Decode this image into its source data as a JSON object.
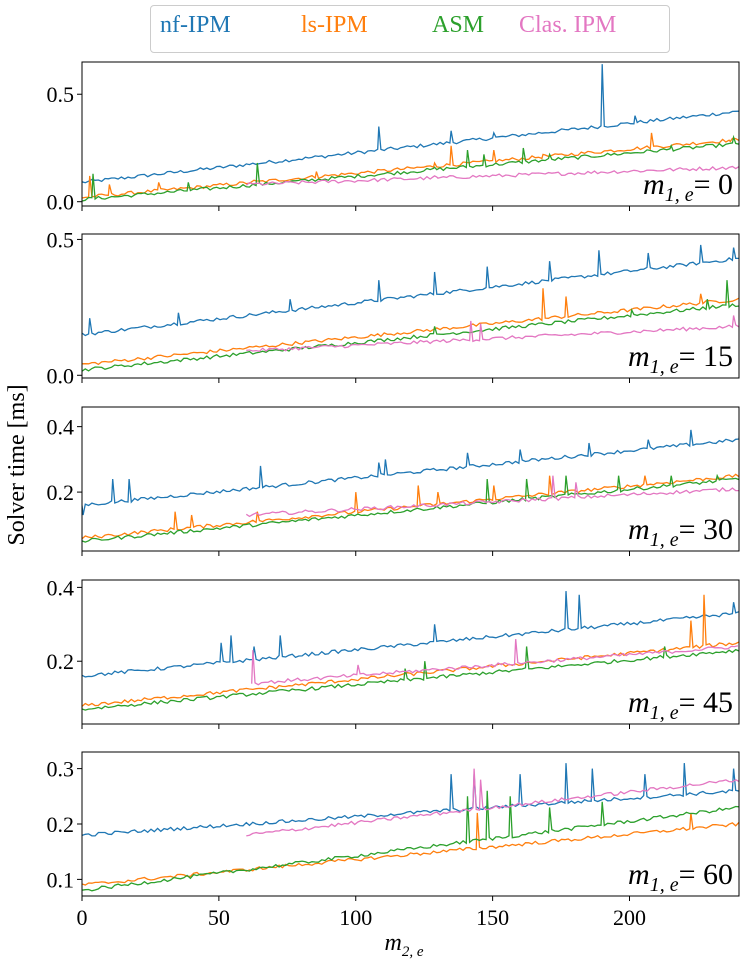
{
  "legend": [
    {
      "label": "nf-IPM",
      "color": "#1f77b4"
    },
    {
      "label": "ls-IPM",
      "color": "#ff7f0e"
    },
    {
      "label": "ASM",
      "color": "#2ca02c"
    },
    {
      "label": "Clas. IPM",
      "color": "#e377c2"
    }
  ],
  "ylabel": "Solver time [ms]",
  "xlabel": "m",
  "xlabel_sub": "2, e",
  "chart_data": [
    {
      "type": "line",
      "annotation": {
        "lhs": "m",
        "sub": "1, e",
        "rhs": "= 0"
      },
      "xlim": [
        0,
        240
      ],
      "ylim": [
        -0.02,
        0.65
      ],
      "yticks": [
        0.0,
        0.5
      ],
      "ytick_labels": [
        "0.0",
        "0.5"
      ],
      "series": [
        {
          "name": "nf-IPM",
          "color": "#1f77b4",
          "x": [
            0,
            240
          ],
          "y": [
            0.09,
            0.42
          ],
          "spikes": [
            [
              108,
              0.35
            ],
            [
              135,
              0.33
            ],
            [
              150,
              0.32
            ],
            [
              190,
              0.64
            ],
            [
              201,
              0.4
            ]
          ]
        },
        {
          "name": "ls-IPM",
          "color": "#ff7f0e",
          "x": [
            0,
            240
          ],
          "y": [
            0.02,
            0.29
          ],
          "spikes": [
            [
              2,
              0.12
            ],
            [
              10,
              0.08
            ],
            [
              28,
              0.09
            ],
            [
              62,
              0.1
            ],
            [
              85,
              0.14
            ],
            [
              128,
              0.18
            ],
            [
              134,
              0.26
            ],
            [
              150,
              0.24
            ],
            [
              168,
              0.22
            ],
            [
              208,
              0.32
            ],
            [
              236,
              0.28
            ]
          ]
        },
        {
          "name": "ASM",
          "color": "#2ca02c",
          "x": [
            0,
            240
          ],
          "y": [
            0.01,
            0.27
          ],
          "spikes": [
            [
              3,
              0.13
            ],
            [
              38,
              0.09
            ],
            [
              64,
              0.18
            ],
            [
              129,
              0.16
            ],
            [
              140,
              0.24
            ],
            [
              146,
              0.22
            ],
            [
              161,
              0.25
            ],
            [
              170,
              0.22
            ],
            [
              215,
              0.26
            ],
            [
              237,
              0.3
            ]
          ]
        },
        {
          "name": "Clas. IPM",
          "color": "#e377c2",
          "x": [
            60,
            240
          ],
          "y": [
            0.08,
            0.16
          ],
          "spikes": [
            [
              128,
              0.12
            ],
            [
              130,
              0.11
            ]
          ]
        }
      ]
    },
    {
      "type": "line",
      "annotation": {
        "lhs": "m",
        "sub": "1, e",
        "rhs": "= 15"
      },
      "xlim": [
        0,
        240
      ],
      "ylim": [
        -0.01,
        0.52
      ],
      "yticks": [
        0.0,
        0.5
      ],
      "ytick_labels": [
        "0.0",
        "0.5"
      ],
      "series": [
        {
          "name": "nf-IPM",
          "color": "#1f77b4",
          "x": [
            0,
            240
          ],
          "y": [
            0.15,
            0.43
          ],
          "spikes": [
            [
              2,
              0.21
            ],
            [
              35,
              0.23
            ],
            [
              76,
              0.28
            ],
            [
              108,
              0.35
            ],
            [
              128,
              0.38
            ],
            [
              148,
              0.4
            ],
            [
              170,
              0.42
            ],
            [
              188,
              0.46
            ],
            [
              206,
              0.45
            ],
            [
              226,
              0.48
            ],
            [
              238,
              0.47
            ]
          ]
        },
        {
          "name": "ls-IPM",
          "color": "#ff7f0e",
          "x": [
            0,
            240
          ],
          "y": [
            0.04,
            0.28
          ],
          "spikes": [
            [
              168,
              0.32
            ],
            [
              176,
              0.29
            ],
            [
              225,
              0.3
            ]
          ]
        },
        {
          "name": "ASM",
          "color": "#2ca02c",
          "x": [
            0,
            240
          ],
          "y": [
            0.02,
            0.26
          ],
          "spikes": [
            [
              128,
              0.18
            ],
            [
              200,
              0.24
            ],
            [
              228,
              0.28
            ],
            [
              235,
              0.35
            ]
          ]
        },
        {
          "name": "Clas. IPM",
          "color": "#e377c2",
          "x": [
            60,
            240
          ],
          "y": [
            0.09,
            0.18
          ],
          "spikes": [
            [
              142,
              0.2
            ],
            [
              145,
              0.19
            ],
            [
              237,
              0.22
            ]
          ]
        }
      ]
    },
    {
      "type": "line",
      "annotation": {
        "lhs": "m",
        "sub": "1, e",
        "rhs": "= 30"
      },
      "xlim": [
        0,
        240
      ],
      "ylim": [
        0.02,
        0.46
      ],
      "yticks": [
        0.2,
        0.4
      ],
      "ytick_labels": [
        "0.2",
        "0.4"
      ],
      "series": [
        {
          "name": "nf-IPM",
          "color": "#1f77b4",
          "x": [
            0,
            240
          ],
          "y": [
            0.16,
            0.36
          ],
          "spikes": [
            [
              0,
              0.13
            ],
            [
              11,
              0.24
            ],
            [
              17,
              0.24
            ],
            [
              65,
              0.28
            ],
            [
              108,
              0.29
            ],
            [
              110,
              0.3
            ],
            [
              140,
              0.32
            ],
            [
              160,
              0.33
            ],
            [
              185,
              0.35
            ],
            [
              206,
              0.36
            ],
            [
              222,
              0.39
            ],
            [
              240,
              0.43
            ]
          ]
        },
        {
          "name": "ls-IPM",
          "color": "#ff7f0e",
          "x": [
            0,
            240
          ],
          "y": [
            0.06,
            0.25
          ],
          "spikes": [
            [
              34,
              0.14
            ],
            [
              40,
              0.13
            ],
            [
              64,
              0.14
            ],
            [
              100,
              0.2
            ],
            [
              123,
              0.22
            ],
            [
              130,
              0.2
            ],
            [
              150,
              0.22
            ],
            [
              170,
              0.25
            ],
            [
              205,
              0.25
            ],
            [
              225,
              0.24
            ]
          ]
        },
        {
          "name": "ASM",
          "color": "#2ca02c",
          "x": [
            0,
            240
          ],
          "y": [
            0.05,
            0.24
          ],
          "spikes": [
            [
              148,
              0.24
            ],
            [
              162,
              0.24
            ],
            [
              176,
              0.25
            ],
            [
              195,
              0.25
            ],
            [
              215,
              0.25
            ],
            [
              232,
              0.25
            ]
          ]
        },
        {
          "name": "Clas. IPM",
          "color": "#e377c2",
          "x": [
            60,
            240
          ],
          "y": [
            0.13,
            0.21
          ],
          "spikes": [
            [
              172,
              0.25
            ],
            [
              180,
              0.23
            ]
          ]
        }
      ]
    },
    {
      "type": "line",
      "annotation": {
        "lhs": "m",
        "sub": "1, e",
        "rhs": "= 45"
      },
      "xlim": [
        0,
        240
      ],
      "ylim": [
        0.03,
        0.42
      ],
      "yticks": [
        0.2,
        0.4
      ],
      "ytick_labels": [
        "0.2",
        "0.4"
      ],
      "series": [
        {
          "name": "nf-IPM",
          "color": "#1f77b4",
          "x": [
            0,
            240
          ],
          "y": [
            0.16,
            0.33
          ],
          "spikes": [
            [
              50,
              0.25
            ],
            [
              54,
              0.27
            ],
            [
              63,
              0.24
            ],
            [
              72,
              0.27
            ],
            [
              128,
              0.3
            ],
            [
              176,
              0.39
            ],
            [
              181,
              0.38
            ],
            [
              238,
              0.36
            ]
          ]
        },
        {
          "name": "ls-IPM",
          "color": "#ff7f0e",
          "x": [
            0,
            240
          ],
          "y": [
            0.08,
            0.25
          ],
          "spikes": [
            [
              222,
              0.31
            ],
            [
              227,
              0.38
            ]
          ]
        },
        {
          "name": "ASM",
          "color": "#2ca02c",
          "x": [
            0,
            240
          ],
          "y": [
            0.07,
            0.23
          ],
          "spikes": [
            [
              118,
              0.18
            ],
            [
              125,
              0.2
            ],
            [
              162,
              0.24
            ],
            [
              212,
              0.24
            ]
          ]
        },
        {
          "name": "Clas. IPM",
          "color": "#e377c2",
          "x": [
            62,
            240
          ],
          "y": [
            0.14,
            0.24
          ],
          "spikes": [
            [
              62,
              0.23
            ],
            [
              100,
              0.19
            ],
            [
              158,
              0.26
            ]
          ]
        }
      ]
    },
    {
      "type": "line",
      "annotation": {
        "lhs": "m",
        "sub": "1, e",
        "rhs": "= 60"
      },
      "xlim": [
        0,
        240
      ],
      "ylim": [
        0.07,
        0.33
      ],
      "yticks": [
        0.1,
        0.2,
        0.3
      ],
      "ytick_labels": [
        "0.1",
        "0.2",
        "0.3"
      ],
      "series": [
        {
          "name": "nf-IPM",
          "color": "#1f77b4",
          "x": [
            0,
            240
          ],
          "y": [
            0.18,
            0.26
          ],
          "spikes": [
            [
              135,
              0.29
            ],
            [
              143,
              0.29
            ],
            [
              160,
              0.29
            ],
            [
              176,
              0.31
            ],
            [
              186,
              0.3
            ],
            [
              205,
              0.29
            ],
            [
              220,
              0.31
            ],
            [
              238,
              0.3
            ]
          ]
        },
        {
          "name": "ls-IPM",
          "color": "#ff7f0e",
          "x": [
            0,
            240
          ],
          "y": [
            0.09,
            0.2
          ],
          "spikes": [
            [
              144,
              0.22
            ],
            [
              222,
              0.22
            ]
          ]
        },
        {
          "name": "ASM",
          "color": "#2ca02c",
          "x": [
            0,
            240
          ],
          "y": [
            0.08,
            0.23
          ],
          "spikes": [
            [
              141,
              0.25
            ],
            [
              148,
              0.26
            ],
            [
              156,
              0.25
            ],
            [
              170,
              0.23
            ],
            [
              190,
              0.24
            ]
          ]
        },
        {
          "name": "Clas. IPM",
          "color": "#e377c2",
          "x": [
            60,
            240
          ],
          "y": [
            0.18,
            0.28
          ],
          "spikes": [
            [
              143,
              0.3
            ],
            [
              145,
              0.28
            ]
          ]
        }
      ]
    }
  ],
  "xticks": [
    0,
    50,
    100,
    150,
    200
  ],
  "xtick_labels": [
    "0",
    "50",
    "100",
    "150",
    "200"
  ]
}
